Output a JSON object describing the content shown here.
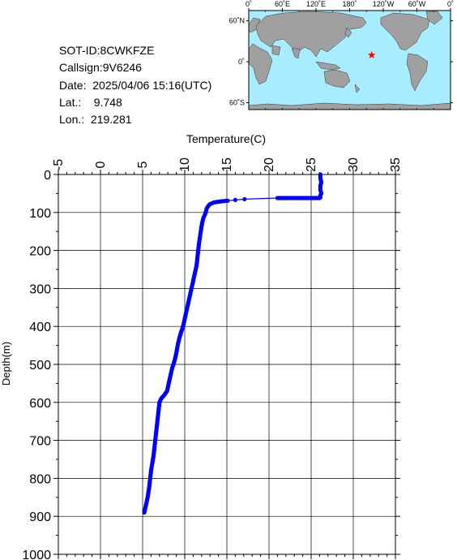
{
  "header": {
    "sot_id": "SOT-ID:8CWKFZE",
    "callsign": "Callsign:9V6246",
    "date": "Date:  2025/04/06 15:16(UTC)",
    "lat": "Lat.:    9.748",
    "lon": "Lon.:  219.281"
  },
  "map": {
    "lon_labels": [
      "0˚",
      "60˚E",
      "120˚E",
      "180˚",
      "120˚W",
      "60˚W",
      "0˚"
    ],
    "lat_labels": [
      "60˚N",
      "0˚",
      "60˚S"
    ],
    "ocean_color": "#a8ecff",
    "land_color": "#a0a0a0",
    "marker": {
      "lon": 219.281,
      "lat": 9.748,
      "color": "#ff0000",
      "symbol": "star"
    }
  },
  "chart_data": {
    "type": "scatter",
    "title": "",
    "xlabel": "Temperature(C)",
    "ylabel": "Depth(m)",
    "xlim": [
      -5,
      35
    ],
    "ylim": [
      0,
      1000
    ],
    "y_inverted": true,
    "x_axis_position": "top",
    "x_ticks": [
      -5,
      0,
      5,
      10,
      15,
      20,
      25,
      30,
      35
    ],
    "y_ticks": [
      0,
      100,
      200,
      300,
      400,
      500,
      600,
      700,
      800,
      900,
      1000
    ],
    "grid": true,
    "series": [
      {
        "color": "#0000ff",
        "marker": "dot",
        "x": [
          26.1,
          26.1,
          26.2,
          26.1,
          26.1,
          26.2,
          26.1,
          26.1,
          26.0,
          21.0,
          17.1,
          16.0,
          15.1,
          14.6,
          14.2,
          13.9,
          13.6,
          13.4,
          13.2,
          13.0,
          12.9,
          12.8,
          12.7,
          12.6,
          12.55,
          12.4,
          12.3,
          12.2,
          12.1,
          12.0,
          11.9,
          11.8,
          11.7,
          11.6,
          11.5,
          11.4,
          11.2,
          11.0,
          10.8,
          10.5,
          10.2,
          10.0,
          9.8,
          9.5,
          9.2,
          9.0,
          8.8,
          8.5,
          8.2,
          7.9,
          7.6,
          7.2,
          7.0,
          6.9,
          6.7,
          6.5,
          6.3,
          6.0,
          5.8,
          5.6,
          5.4,
          5.2
        ],
        "y": [
          0,
          10,
          20,
          30,
          40,
          50,
          55,
          60,
          62,
          62,
          65,
          67,
          69,
          70,
          71,
          72,
          73,
          74,
          76,
          78,
          80,
          83,
          86,
          90,
          95,
          105,
          110,
          115,
          125,
          135,
          150,
          165,
          180,
          200,
          220,
          240,
          260,
          280,
          300,
          330,
          360,
          380,
          400,
          420,
          445,
          470,
          490,
          510,
          540,
          570,
          580,
          590,
          600,
          620,
          660,
          700,
          740,
          780,
          820,
          850,
          870,
          890
        ]
      }
    ]
  }
}
